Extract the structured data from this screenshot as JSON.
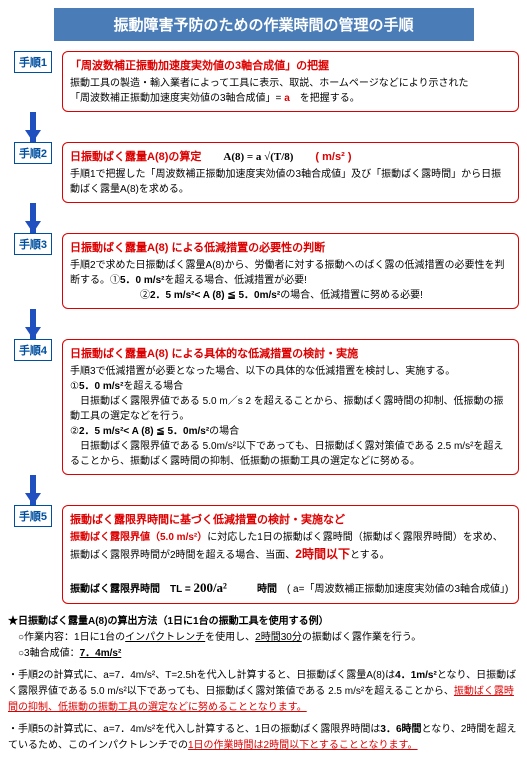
{
  "title": "振動障害予防のための作業時間の管理の手順",
  "steps": [
    {
      "label": "手順1",
      "heading": "「周波数補正振動加速度実効値の3軸合成値」の把握",
      "body_html": "振動工具の製造・輸入業者によって工具に表示、取説、ホームページなどにより示された<br>「周波数補正振動加速度実効値の3軸合成値」= <span class='red-bold'>a</span>　を把握する。"
    },
    {
      "label": "手順2",
      "heading_html": "<span class='red-bold'>日振動ばく露量A(8)の算定</span>　　<span class='formula' style='color:#000'>A(8) = a √(T/8)</span>　　( m/s² )",
      "body_html": "手順1で把握した「周波数補正振動加速度実効値の3軸合成値」及び「振動ばく露時間」から日振動ばく露量A(8)を求める。"
    },
    {
      "label": "手順3",
      "heading": "日振動ばく露量A(8) による低減措置の必要性の判断",
      "body_html": "手順2で求めた日振動ばく露量A(8)から、労働者に対する振動へのばく露の低減措置の必要性を判断する。①<b>5．0 m/s²</b>を超える場合、低減措置が必要!<br>　　　　　　　②<b>2．5 m/s²&lt; A (8) ≦ 5．0m/s²</b>の場合、低減措置に努める必要!"
    },
    {
      "label": "手順4",
      "heading": "日振動ばく露量A(8) による具体的な低減措置の検討・実施",
      "body_html": "手順3で低減措置が必要となった場合、以下の具体的な低減措置を検討し、実施する。<br>①<b>5．0 m/s²</b>を超える場合<br>　日振動ばく露限界値である 5.0 m／s 2 を超えることから、振動ばく露時間の抑制、低振動の振動工具の選定などを行う。<br>②<b>2．5 m/s²&lt; A (8) ≦ 5．0m/s²</b>の場合<br>　日振動ばく露限界値である 5.0m/s²以下であっても、日振動ばく露対策値である 2.5 m/s²を超えることから、振動ばく露時間の抑制、低振動の振動工具の選定などに努める。"
    },
    {
      "label": "手順5",
      "heading": "振動ばく露限界時間に基づく低減措置の検討・実施など",
      "body_html": "<span class='red-bold'>振動ばく露限界値（5.0 m/s²）</span>に対応した1日の振動ばく露時間（振動ばく露限界時間）を求め、振動ばく露限界時間が2時間を超える場合、当面、<span class='red-bold' style='font-size:12px'>2時間以下</span>とする。<br><br><b>振動ばく露限界時間　TL = <span class='formula' style='font-size:13px'>200/a²</span>　　　時間</b>　( a=「周波数補正振動加速度実効値の3軸合成値」)"
    }
  ],
  "bottom": {
    "p1_html": "<b>★日振動ばく露量A(8)の算出方法（1日に1台の振動工具を使用する例）</b><br>　○作業内容：1日に1台の<span class='underline'>インパクトレンチ</span>を使用し、<span class='underline'>2時間30分</span>の振動ばく露作業を行う。<br>　○3軸合成値：<span class='highlight-underline'>7．4m/s²</span>",
    "p2_html": "・手順2の計算式に、a=7．4m/s²、T=2.5hを代入し計算すると、日振動ばく露量A(8)は<b>4．1m/s²</b>となり、日振動ばく露限界値である 5.0 m/s²以下であっても、日振動ばく露対策値である 2.5 m/s²を超えることから、<span class='red-underline'>振動ばく露時間の抑制、低振動の振動工具の選定などに努めることとなります。</span>",
    "p3_html": "・手順5の計算式に、a=7．4m/s²を代入し計算すると、1日の振動ばく露限界時間は<b>3．6時間</b>となり、2時間を超えているため、このインパクトレンチでの<span class='red-underline'>1日の作業時間は2時間以下とすることとなります。</span>"
  },
  "colors": {
    "border": "#d00",
    "label_border": "#0050a0",
    "banner": "#4a7cb8",
    "arrow": "#2050c0"
  }
}
